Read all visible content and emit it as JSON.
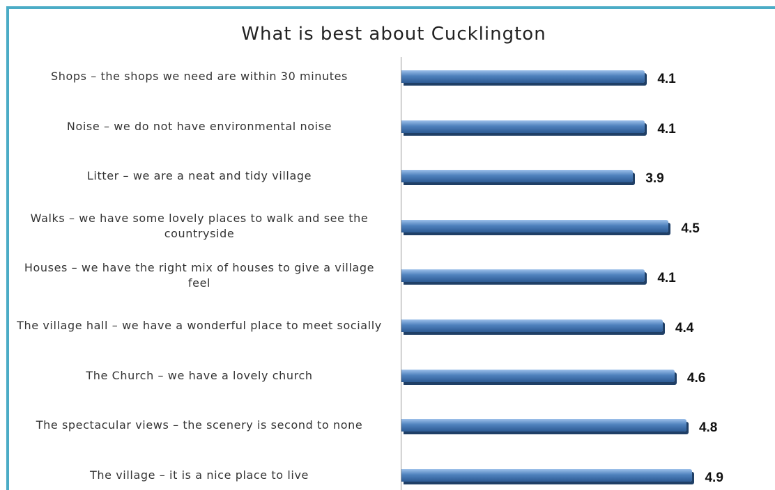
{
  "chart_data": {
    "type": "bar",
    "orientation": "horizontal",
    "title": "What is best about Cucklington",
    "categories": [
      "Shops –  the shops we need are within 30 minutes",
      "Noise – we do not have environmental noise",
      "Litter – we are a neat and tidy village",
      "Walks – we have some lovely places to walk and see the countryside",
      "Houses – we have the right mix of houses to give a village feel",
      "The village hall – we have a wonderful place to meet socially",
      "The Church – we have a lovely church",
      "The spectacular views – the scenery is second to none",
      "The village – it is a nice place to live"
    ],
    "values": [
      4.1,
      4.1,
      3.9,
      4.5,
      4.1,
      4.4,
      4.6,
      4.8,
      4.9
    ],
    "color": "#4f81bd",
    "xlim": [
      0,
      5
    ],
    "grid": false
  }
}
